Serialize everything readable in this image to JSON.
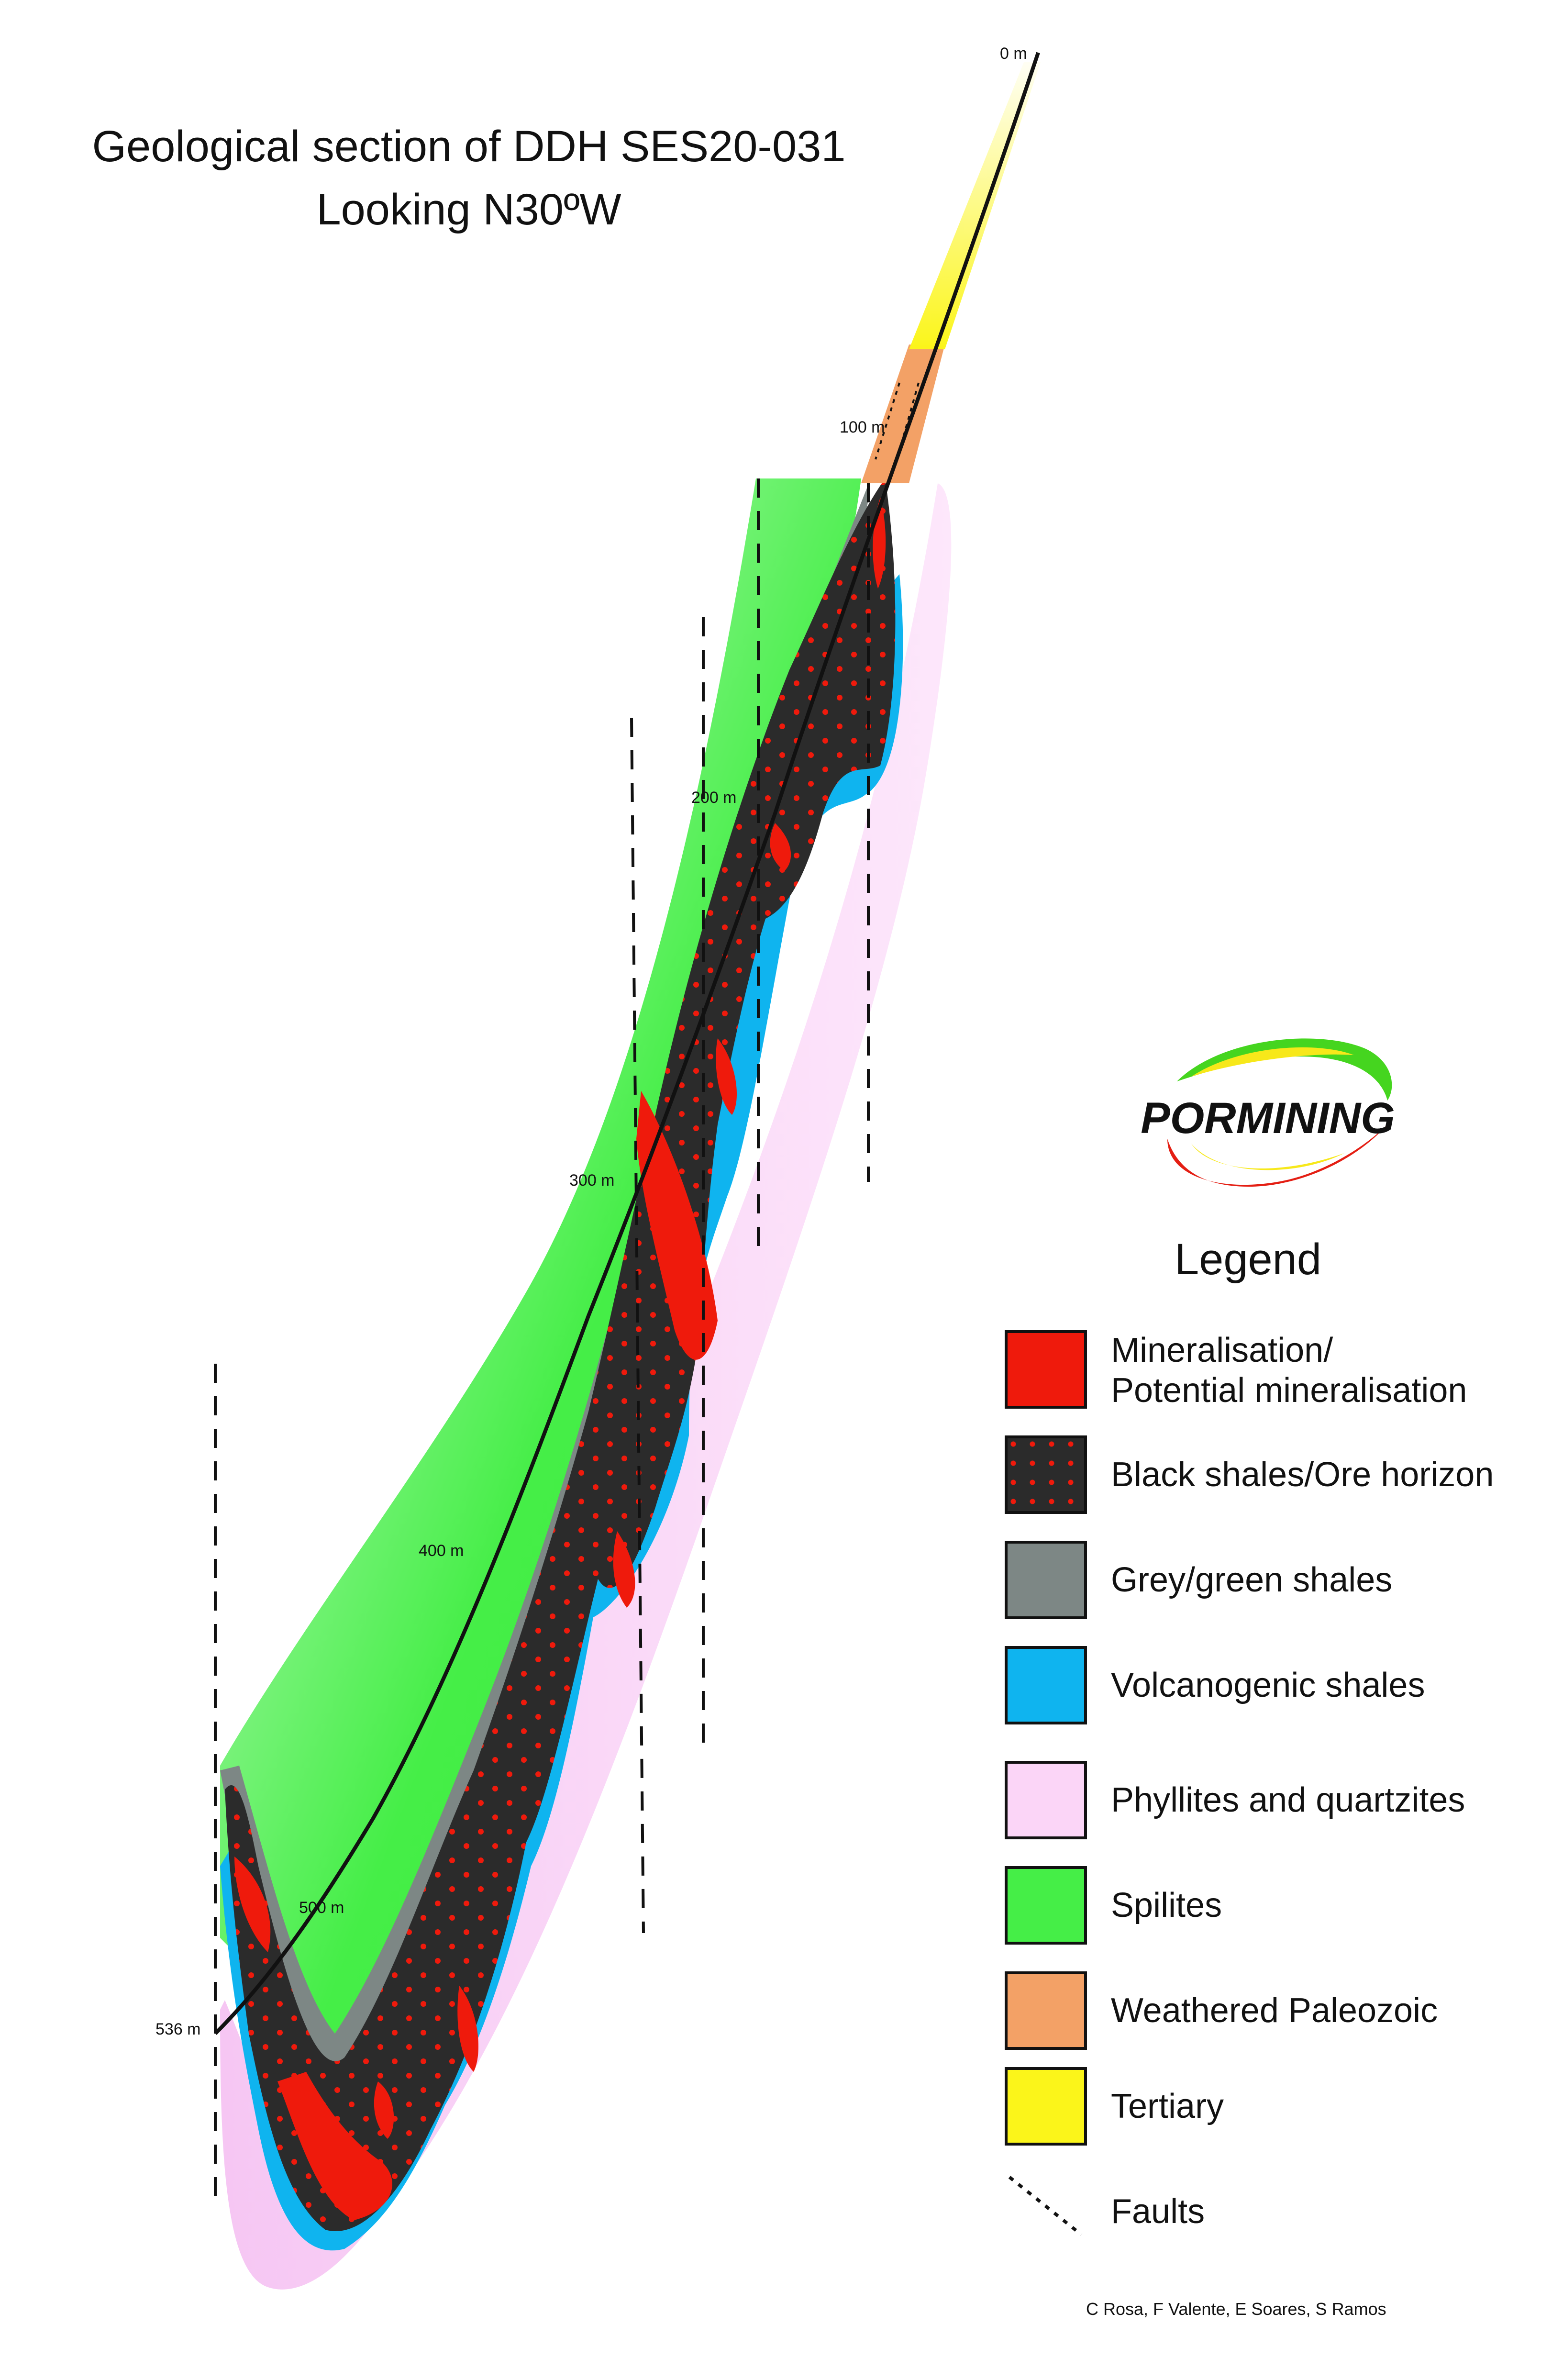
{
  "title": {
    "line1": "Geological section of DDH SES20-031",
    "line2": "Looking N30ºW"
  },
  "depth_markers": [
    "0 m",
    "100 m",
    "200 m",
    "300 m",
    "400 m",
    "500 m",
    "536 m"
  ],
  "logo": {
    "text": "PORMINING"
  },
  "legend": {
    "title": "Legend",
    "items": [
      {
        "label": "Mineralisation/\nPotential mineralisation",
        "color": "#ef1a0c"
      },
      {
        "label": "Black shales/Ore horizon",
        "color": "#2b2b2b"
      },
      {
        "label": "Grey/green shales",
        "color": "#7d8785"
      },
      {
        "label": "Volcanogenic shales",
        "color": "#0fb4ef"
      },
      {
        "label": "Phyllites and quartzites",
        "color": "#fbd5f7"
      },
      {
        "label": "Spilites",
        "color": "#45ee47"
      },
      {
        "label": "Weathered Paleozoic",
        "color": "#f3a166"
      },
      {
        "label": "Tertiary",
        "color": "#fbf51a"
      },
      {
        "label": "Faults",
        "color": "#111111"
      }
    ]
  },
  "credits": "C Rosa, F Valente, E Soares, S Ramos"
}
